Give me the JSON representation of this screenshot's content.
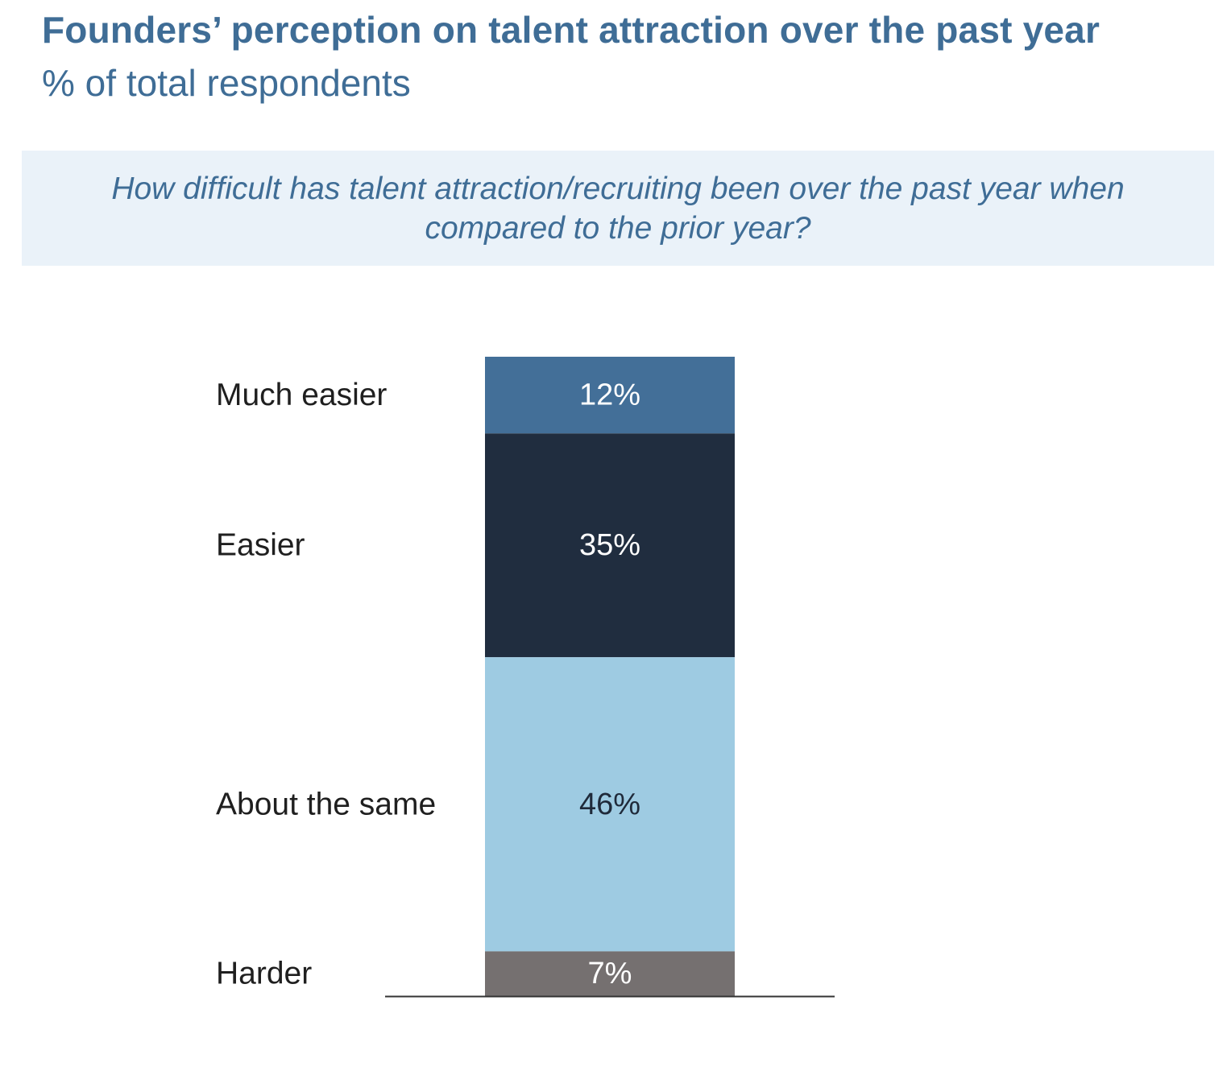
{
  "header": {
    "title": "Founders’ perception on talent attraction over the past year",
    "subtitle": "% of total respondents"
  },
  "question": {
    "text": "How difficult has talent attraction/recruiting been over the past year when compared to the prior year?"
  },
  "chart_data": {
    "type": "bar",
    "stacked": true,
    "orientation": "vertical",
    "categories": [
      "Much easier",
      "Easier",
      "About the same",
      "Harder"
    ],
    "values": [
      12,
      35,
      46,
      7
    ],
    "value_labels": [
      "12%",
      "35%",
      "46%",
      "7%"
    ],
    "unit": "%",
    "colors": [
      "#436f98",
      "#202d3f",
      "#9ecbe2",
      "#757070"
    ],
    "label_colors": [
      "#ffffff",
      "#ffffff",
      "#1f2a3a",
      "#ffffff"
    ],
    "category_label_color": "#1f1f1f",
    "baseline_color": "#333333",
    "ylim": [
      0,
      100
    ],
    "grid": false,
    "legend": "none"
  }
}
